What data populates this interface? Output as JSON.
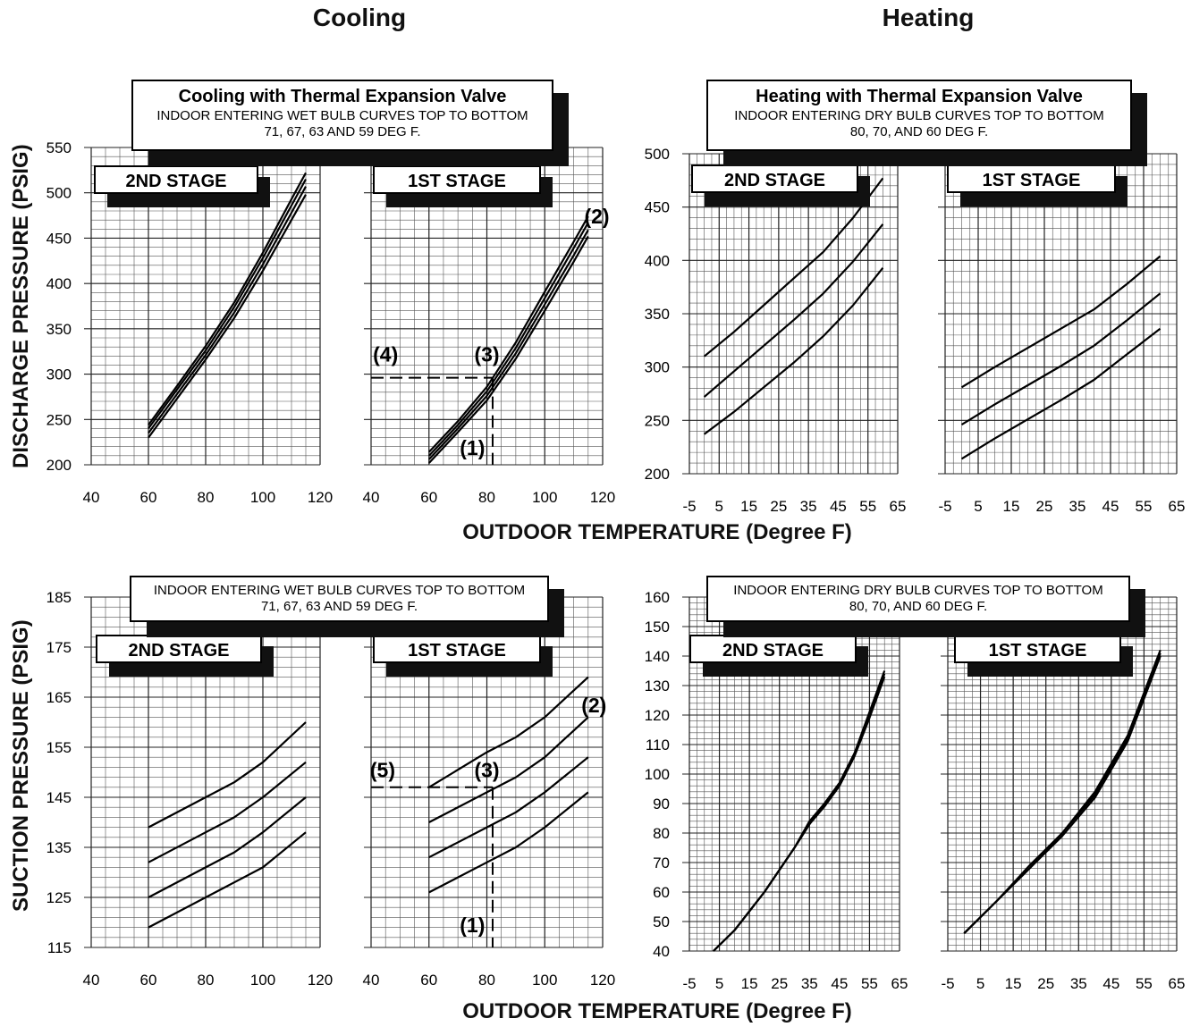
{
  "headings": {
    "cooling": "Cooling",
    "heating": "Heating"
  },
  "axis_titles": {
    "discharge": "DISCHARGE PRESSURE (PSIG)",
    "suction": "SUCTION PRESSURE (PSIG)",
    "outdoor_top": "OUTDOOR TEMPERATURE (Degree F)",
    "outdoor_bottom": "OUTDOOR TEMPERATURE (Degree F)"
  },
  "chart_data": [
    {
      "id": "cooling-discharge",
      "type": "line",
      "title": "Cooling with Thermal Expansion Valve",
      "subtitle": [
        "INDOOR ENTERING WET BULB CURVES TOP TO BOTTOM",
        "71, 67, 63 AND 59 DEG F."
      ],
      "ylabel": "DISCHARGE PRESSURE (PSIG)",
      "xlabel": "OUTDOOR TEMPERATURE (Degree F)",
      "ylim": [
        200,
        550
      ],
      "yticks": [
        200,
        250,
        300,
        350,
        400,
        450,
        500,
        550
      ],
      "panels": [
        {
          "stage": "2ND STAGE",
          "xlim": [
            40,
            120
          ],
          "xticks": [
            40,
            60,
            80,
            100,
            120
          ],
          "series": [
            {
              "x": [
                60,
                70,
                80,
                90,
                100,
                110,
                115
              ],
              "y": [
                244,
                287,
                331,
                379,
                434,
                493,
                522
              ]
            },
            {
              "x": [
                60,
                70,
                80,
                90,
                100,
                110,
                115
              ],
              "y": [
                240,
                283,
                326,
                374,
                428,
                486,
                515
              ]
            },
            {
              "x": [
                60,
                70,
                80,
                90,
                100,
                110,
                115
              ],
              "y": [
                235,
                278,
                321,
                368,
                421,
                478,
                507
              ]
            },
            {
              "x": [
                60,
                70,
                80,
                90,
                100,
                110,
                115
              ],
              "y": [
                230,
                273,
                316,
                362,
                414,
                470,
                498
              ]
            }
          ]
        },
        {
          "stage": "1ST STAGE",
          "xlim": [
            40,
            120
          ],
          "xticks": [
            40,
            60,
            80,
            100,
            120
          ],
          "series": [
            {
              "x": [
                60,
                70,
                80,
                90,
                100,
                110,
                115
              ],
              "y": [
                214,
                248,
                286,
                335,
                391,
                446,
                474
              ]
            },
            {
              "x": [
                60,
                70,
                80,
                90,
                100,
                110,
                115
              ],
              "y": [
                210,
                244,
                281,
                329,
                384,
                439,
                467
              ]
            },
            {
              "x": [
                60,
                70,
                80,
                90,
                100,
                110,
                115
              ],
              "y": [
                206,
                240,
                276,
                323,
                377,
                431,
                459
              ]
            },
            {
              "x": [
                60,
                70,
                80,
                90,
                100,
                110,
                115
              ],
              "y": [
                202,
                236,
                271,
                317,
                370,
                424,
                452
              ]
            }
          ],
          "guide": {
            "x": 82,
            "y": 296
          },
          "annotations": [
            {
              "text": "(1)",
              "x": 75,
              "y": 211
            },
            {
              "text": "(2)",
              "x": 118,
              "y": 466
            },
            {
              "text": "(3)",
              "x": 80,
              "y": 314
            },
            {
              "text": "(4)",
              "x": 45,
              "y": 314
            }
          ]
        }
      ]
    },
    {
      "id": "heating-discharge",
      "type": "line",
      "title": "Heating with Thermal Expansion Valve",
      "subtitle": [
        "INDOOR ENTERING DRY BULB CURVES TOP TO BOTTOM",
        "80, 70, AND 60 DEG F."
      ],
      "ylim": [
        200,
        500
      ],
      "yticks": [
        200,
        250,
        300,
        350,
        400,
        450,
        500
      ],
      "panels": [
        {
          "stage": "2ND STAGE",
          "xlim": [
            -5,
            65
          ],
          "xticks": [
            -5,
            5,
            15,
            25,
            35,
            45,
            55,
            65
          ],
          "series": [
            {
              "x": [
                0,
                10,
                20,
                30,
                40,
                50,
                60
              ],
              "y": [
                310,
                333,
                358,
                383,
                408,
                440,
                477
              ]
            },
            {
              "x": [
                0,
                10,
                20,
                30,
                40,
                50,
                60
              ],
              "y": [
                272,
                296,
                320,
                344,
                369,
                399,
                434
              ]
            },
            {
              "x": [
                0,
                10,
                20,
                30,
                40,
                50,
                60
              ],
              "y": [
                237,
                258,
                281,
                304,
                329,
                358,
                393
              ]
            }
          ]
        },
        {
          "stage": "1ST STAGE",
          "xlim": [
            -5,
            65
          ],
          "xticks": [
            -5,
            5,
            15,
            25,
            35,
            45,
            55,
            65
          ],
          "series": [
            {
              "x": [
                0,
                10,
                20,
                30,
                40,
                50,
                60
              ],
              "y": [
                281,
                300,
                318,
                336,
                354,
                378,
                404
              ]
            },
            {
              "x": [
                0,
                10,
                20,
                30,
                40,
                50,
                60
              ],
              "y": [
                246,
                265,
                283,
                301,
                320,
                344,
                369
              ]
            },
            {
              "x": [
                0,
                10,
                20,
                30,
                40,
                50,
                60
              ],
              "y": [
                214,
                233,
                251,
                269,
                288,
                312,
                336
              ]
            }
          ]
        }
      ]
    },
    {
      "id": "cooling-suction",
      "type": "line",
      "subtitle": [
        "INDOOR ENTERING WET BULB CURVES TOP TO BOTTOM",
        "71, 67, 63 AND 59 DEG F."
      ],
      "ylabel": "SUCTION PRESSURE (PSIG)",
      "xlabel": "OUTDOOR TEMPERATURE (Degree F)",
      "ylim": [
        115,
        185
      ],
      "yticks": [
        115,
        125,
        135,
        145,
        155,
        165,
        175,
        185
      ],
      "panels": [
        {
          "stage": "2ND STAGE",
          "xlim": [
            40,
            120
          ],
          "xticks": [
            40,
            60,
            80,
            100,
            120
          ],
          "series": [
            {
              "x": [
                60,
                80,
                90,
                100,
                115
              ],
              "y": [
                139,
                145,
                148,
                152,
                160
              ]
            },
            {
              "x": [
                60,
                80,
                90,
                100,
                115
              ],
              "y": [
                132,
                138,
                141,
                145,
                152
              ]
            },
            {
              "x": [
                60,
                80,
                90,
                100,
                115
              ],
              "y": [
                125,
                131,
                134,
                138,
                145
              ]
            },
            {
              "x": [
                60,
                80,
                90,
                100,
                115
              ],
              "y": [
                119,
                125,
                128,
                131,
                138
              ]
            }
          ]
        },
        {
          "stage": "1ST STAGE",
          "xlim": [
            40,
            120
          ],
          "xticks": [
            40,
            60,
            80,
            100,
            120
          ],
          "series": [
            {
              "x": [
                60,
                80,
                90,
                100,
                115
              ],
              "y": [
                147,
                154,
                157,
                161,
                169
              ]
            },
            {
              "x": [
                60,
                80,
                90,
                100,
                115
              ],
              "y": [
                140,
                146,
                149,
                153,
                161
              ]
            },
            {
              "x": [
                60,
                80,
                90,
                100,
                115
              ],
              "y": [
                133,
                139,
                142,
                146,
                153
              ]
            },
            {
              "x": [
                60,
                80,
                90,
                100,
                115
              ],
              "y": [
                126,
                132,
                135,
                139,
                146
              ]
            }
          ],
          "guide": {
            "x": 82,
            "y": 147
          },
          "annotations": [
            {
              "text": "(1)",
              "x": 75,
              "y": 118
            },
            {
              "text": "(2)",
              "x": 117,
              "y": 162
            },
            {
              "text": "(3)",
              "x": 80,
              "y": 149
            },
            {
              "text": "(5)",
              "x": 44,
              "y": 149
            }
          ]
        }
      ]
    },
    {
      "id": "heating-suction",
      "type": "line",
      "subtitle": [
        "INDOOR ENTERING DRY BULB CURVES TOP TO BOTTOM",
        "80, 70, AND 60 DEG F."
      ],
      "ylim": [
        40,
        160
      ],
      "yticks": [
        40,
        50,
        60,
        70,
        80,
        90,
        100,
        110,
        120,
        130,
        140,
        150,
        160
      ],
      "panels": [
        {
          "stage": "2ND STAGE",
          "xlim": [
            -5,
            65
          ],
          "xticks": [
            -5,
            5,
            15,
            25,
            35,
            45,
            55,
            65
          ],
          "series": [
            {
              "x": [
                3,
                10,
                20,
                30,
                35,
                40,
                45,
                50,
                55,
                60
              ],
              "y": [
                40,
                47,
                60,
                75,
                83,
                89,
                96,
                106,
                119,
                133
              ]
            },
            {
              "x": [
                3,
                10,
                20,
                30,
                35,
                40,
                45,
                50,
                55,
                60
              ],
              "y": [
                40,
                47,
                60,
                75,
                83,
                90,
                97,
                107,
                120,
                134
              ]
            },
            {
              "x": [
                3,
                10,
                20,
                30,
                35,
                40,
                45,
                50,
                55,
                60
              ],
              "y": [
                40,
                47,
                60,
                75,
                84,
                90,
                97,
                107,
                121,
                135
              ]
            }
          ]
        },
        {
          "stage": "1ST STAGE",
          "xlim": [
            -5,
            65
          ],
          "xticks": [
            -5,
            5,
            15,
            25,
            35,
            45,
            55,
            65
          ],
          "series": [
            {
              "x": [
                0,
                10,
                20,
                30,
                40,
                50,
                60
              ],
              "y": [
                46,
                57,
                68,
                79,
                92,
                111,
                140
              ]
            },
            {
              "x": [
                0,
                10,
                20,
                30,
                40,
                50,
                60
              ],
              "y": [
                46,
                57,
                68,
                80,
                93,
                112,
                141
              ]
            },
            {
              "x": [
                0,
                10,
                20,
                30,
                40,
                50,
                60
              ],
              "y": [
                46,
                57,
                69,
                80,
                94,
                113,
                142
              ]
            }
          ]
        }
      ]
    }
  ]
}
